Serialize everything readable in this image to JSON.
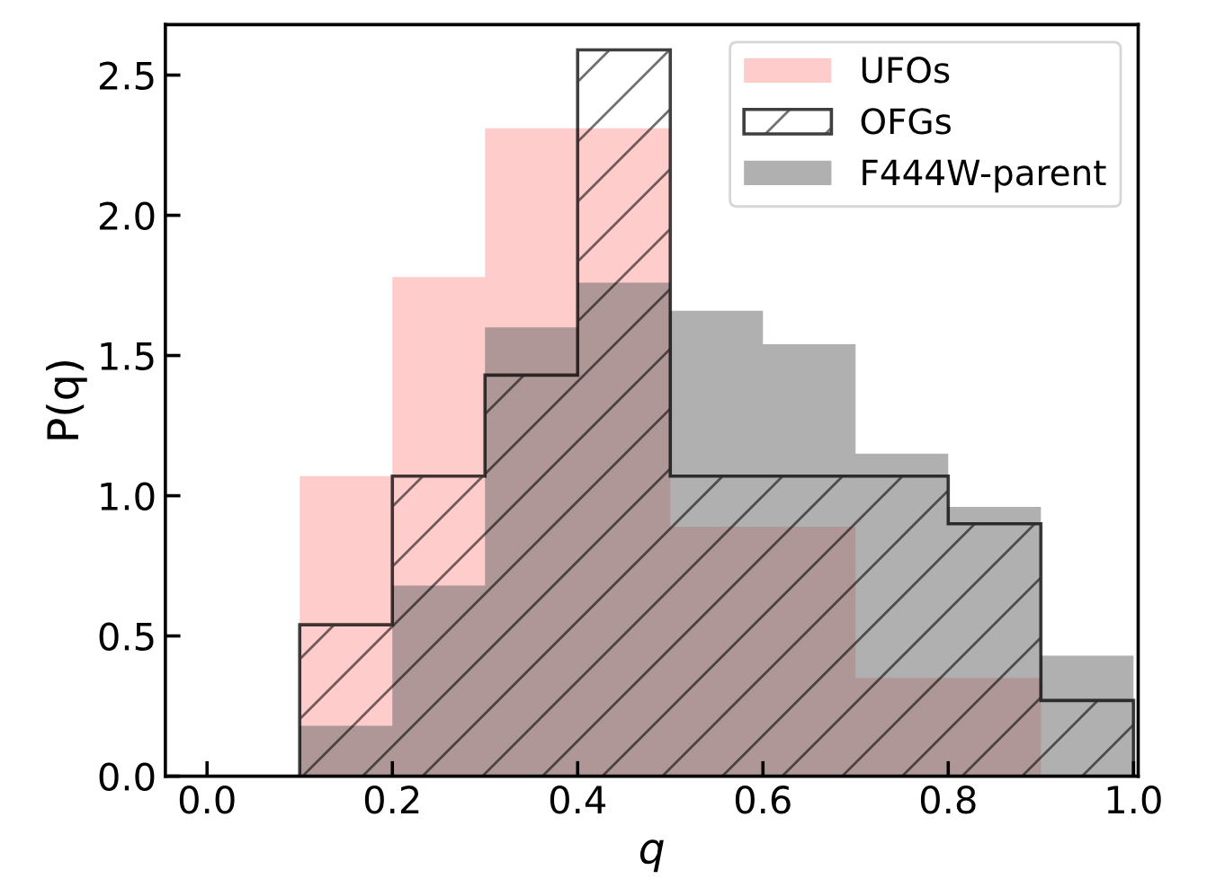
{
  "chart_data": {
    "type": "histogram",
    "xlabel": "q",
    "ylabel": "P(q)",
    "bins": [
      0.1,
      0.2,
      0.3,
      0.4,
      0.5,
      0.6,
      0.7,
      0.8,
      0.9,
      1.0
    ],
    "series": [
      {
        "name": "UFOs",
        "color": "#ff9999",
        "values": [
          1.07,
          1.78,
          2.31,
          2.31,
          0.89,
          0.89,
          0.35,
          0.35,
          0
        ]
      },
      {
        "name": "OFGs",
        "line_style": "solid",
        "color": "#000000",
        "values": [
          0.54,
          1.07,
          1.43,
          2.59,
          1.07,
          1.07,
          1.07,
          0.9,
          0.27
        ]
      },
      {
        "name": "F444W-parent",
        "color": "#616161",
        "values": [
          0.18,
          0.68,
          1.6,
          1.76,
          1.66,
          1.54,
          1.15,
          0.96,
          0.43
        ]
      }
    ],
    "xlim": [
      -0.045,
      1.005
    ],
    "ylim": [
      0,
      2.68
    ],
    "xticks": [
      {
        "value": 0,
        "label": "0.0"
      },
      0.2,
      0.4,
      0.6,
      0.8,
      {
        "value": 1,
        "label": "1.0"
      }
    ],
    "yticks": [
      {
        "value": 0,
        "label": "0.0"
      },
      0.5,
      {
        "value": 1,
        "label": "1.0"
      },
      1.5,
      {
        "value": 2,
        "label": "2.0"
      },
      2.5
    ],
    "legend": "top right"
  }
}
